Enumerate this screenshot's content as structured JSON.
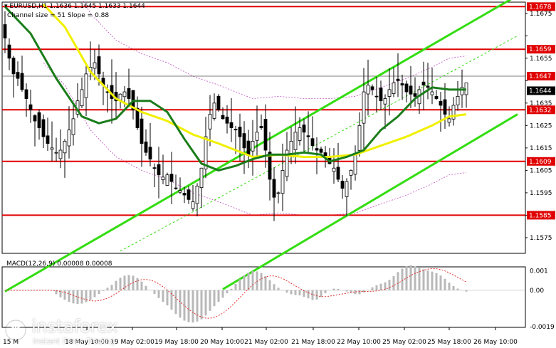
{
  "header": {
    "symbol_line": "▾ EURUSD,H1  1.1636 1.1645 1.1633 1.1644",
    "channel_line": "Channel size = 51  Slope = 0.88"
  },
  "macd_label": "MACD(12,26,9) 0.00008 0.00008",
  "brand": {
    "name": "instaforex",
    "tagline": "Instant Forex Trading"
  },
  "colors": {
    "level_line": "#e00000",
    "level_label_bg": "#e00000",
    "price_line": "#555555",
    "channel": "#33dd11",
    "ma_fast": "#1a7d1a",
    "ma_slow": "#f0f000",
    "bollinger": "#c050c0",
    "candle": "#000000",
    "macd_hist": "#b8b8b8",
    "macd_signal": "#e03030"
  },
  "chart_data": {
    "type": "candlestick",
    "symbol": "EURUSD",
    "timeframe": "H1",
    "ohlc_last": {
      "open": 1.1636,
      "high": 1.1645,
      "low": 1.1633,
      "close": 1.1644
    },
    "ylim": [
      1.1568,
      1.168
    ],
    "y_ticks": [
      1.1675,
      1.1665,
      1.1655,
      1.1645,
      1.1635,
      1.1625,
      1.1615,
      1.1605,
      1.1595,
      1.1585,
      1.1575
    ],
    "y_tick_labels": [
      "1.1675",
      "",
      "1.1655",
      "",
      "1.1635",
      "1.1625",
      "1.1615",
      "1.1605",
      "1.1595",
      "",
      "1.1575"
    ],
    "x_labels": [
      "18 May 10:00",
      "19 May 02:00",
      "19 May 18:00",
      "20 May 10:00",
      "21 May 02:00",
      "21 May 18:00",
      "22 May 10:00",
      "25 May 02:00",
      "25 May 18:00",
      "26 May 10:00"
    ],
    "x_first_label": "15 M",
    "levels": [
      {
        "value": 1.1678,
        "label": "1.1678"
      },
      {
        "value": 1.1659,
        "label": "1.1659"
      },
      {
        "value": 1.1632,
        "label": "1.1632"
      },
      {
        "value": 1.1609,
        "label": "1.1609"
      },
      {
        "value": 1.1585,
        "label": "1.1585"
      }
    ],
    "current_price": {
      "value": 1.1647,
      "label": "1.1647"
    },
    "last_close": {
      "value": 1.1644,
      "label": "1.1644"
    },
    "channel": {
      "upper": [
        [
          0,
          1.1551
        ],
        [
          120,
          1.1683
        ]
      ],
      "middle": [
        [
          27,
          1.1569
        ],
        [
          120,
          1.1665
        ]
      ],
      "lower": [
        [
          51,
          1.1552
        ],
        [
          120,
          1.163
        ]
      ]
    },
    "close_series": [
      1.1664,
      1.1655,
      1.1648,
      1.1646,
      1.1641,
      1.1637,
      1.1632,
      1.1627,
      1.1624,
      1.162,
      1.1617,
      1.1615,
      1.1613,
      1.1614,
      1.1618,
      1.1623,
      1.1628,
      1.1636,
      1.1641,
      1.1648,
      1.1651,
      1.1653,
      1.1648,
      1.1643,
      1.164,
      1.1637,
      1.1636,
      1.1639,
      1.164,
      1.1637,
      1.1632,
      1.1624,
      1.1617,
      1.1613,
      1.161,
      1.1606,
      1.1603,
      1.1602,
      1.1603,
      1.16,
      1.1597,
      1.1596,
      1.1594,
      1.1592,
      1.1591,
      1.1598,
      1.1606,
      1.162,
      1.163,
      1.1635,
      1.1632,
      1.1628,
      1.1626,
      1.1624,
      1.1623,
      1.162,
      1.1615,
      1.1612,
      1.1618,
      1.1622,
      1.1624,
      1.1614,
      1.1601,
      1.1593,
      1.1595,
      1.1605,
      1.1614,
      1.1618,
      1.1622,
      1.1624,
      1.1622,
      1.162,
      1.1616,
      1.1614,
      1.1613,
      1.1611,
      1.1608,
      1.1606,
      1.1601,
      1.1597,
      1.16,
      1.1605,
      1.1612,
      1.1625,
      1.164,
      1.1643,
      1.1641,
      1.1638,
      1.1636,
      1.1637,
      1.1641,
      1.1644,
      1.1645,
      1.1643,
      1.164,
      1.1639,
      1.1638,
      1.1641,
      1.1643,
      1.1642,
      1.164,
      1.1637,
      1.1634,
      1.163,
      1.1628,
      1.1634,
      1.1638,
      1.1642,
      1.1644
    ],
    "ma_fast_series": [
      [
        0,
        1.1678
      ],
      [
        6,
        1.1666
      ],
      [
        12,
        1.1646
      ],
      [
        18,
        1.1629
      ],
      [
        22,
        1.1626
      ],
      [
        26,
        1.1628
      ],
      [
        30,
        1.1636
      ],
      [
        34,
        1.1636
      ],
      [
        38,
        1.1631
      ],
      [
        42,
        1.1619
      ],
      [
        46,
        1.1608
      ],
      [
        50,
        1.1605
      ],
      [
        54,
        1.1607
      ],
      [
        58,
        1.161
      ],
      [
        62,
        1.1612
      ],
      [
        66,
        1.1612
      ],
      [
        70,
        1.1613
      ],
      [
        74,
        1.1612
      ],
      [
        76,
        1.1609
      ],
      [
        80,
        1.1611
      ],
      [
        84,
        1.1614
      ],
      [
        88,
        1.1623
      ],
      [
        92,
        1.1629
      ],
      [
        96,
        1.1637
      ],
      [
        100,
        1.1642
      ],
      [
        104,
        1.1641
      ],
      [
        108,
        1.1641
      ]
    ],
    "ma_slow_series": [
      [
        9,
        1.1679
      ],
      [
        14,
        1.1669
      ],
      [
        20,
        1.1649
      ],
      [
        26,
        1.1637
      ],
      [
        32,
        1.1631
      ],
      [
        38,
        1.1627
      ],
      [
        44,
        1.1621
      ],
      [
        50,
        1.1617
      ],
      [
        54,
        1.1614
      ],
      [
        58,
        1.1611
      ],
      [
        64,
        1.1612
      ],
      [
        70,
        1.1611
      ],
      [
        76,
        1.1611
      ],
      [
        82,
        1.1612
      ],
      [
        88,
        1.1616
      ],
      [
        94,
        1.162
      ],
      [
        100,
        1.1625
      ],
      [
        104,
        1.1629
      ],
      [
        108,
        1.163
      ]
    ],
    "macd": {
      "value": 8e-05,
      "signal": 8e-05,
      "ylim": [
        -0.0019,
        0.0012
      ],
      "y_labels": [
        "0.001",
        "0.00",
        "-0.0019"
      ]
    }
  }
}
